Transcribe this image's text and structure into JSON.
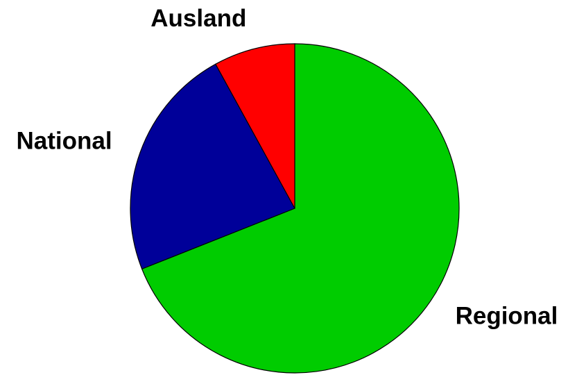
{
  "chart_data": {
    "type": "pie",
    "categories": [
      "Regional",
      "National",
      "Ausland"
    ],
    "values": [
      69,
      23,
      8
    ],
    "colors": [
      "#00cc00",
      "#000099",
      "#ff0000"
    ]
  }
}
